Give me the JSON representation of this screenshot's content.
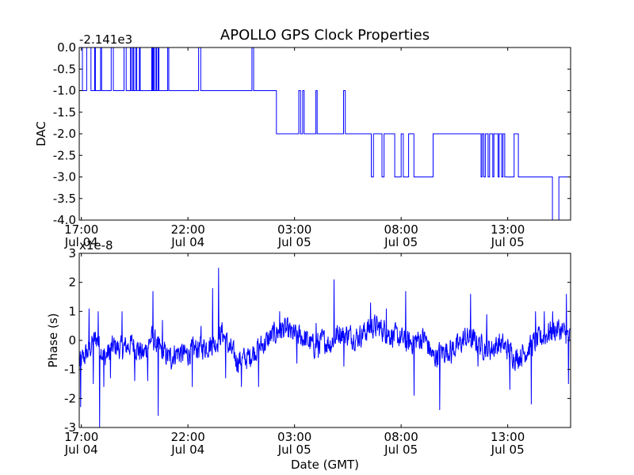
{
  "title": "APOLLO GPS Clock Properties",
  "chart_data": [
    {
      "type": "line",
      "ylabel": "DAC",
      "offset_label": "-2.141e3",
      "ylim": [
        -4.0,
        0.0
      ],
      "yticks": [
        0.0,
        -0.5,
        -1.0,
        -1.5,
        -2.0,
        -2.5,
        -3.0,
        -3.5,
        -4.0
      ],
      "ytick_labels": [
        "0.0",
        "-0.5",
        "-1.0",
        "-1.5",
        "-2.0",
        "-2.5",
        "-3.0",
        "-3.5",
        "-4.0"
      ],
      "xlim": [
        16.9,
        39.95
      ],
      "xticks": [
        17,
        22,
        27,
        32,
        37
      ],
      "xtick_labels": [
        [
          "17:00",
          "Jul 04"
        ],
        [
          "22:00",
          "Jul 04"
        ],
        [
          "03:00",
          "Jul 05"
        ],
        [
          "08:00",
          "Jul 05"
        ],
        [
          "13:00",
          "Jul 05"
        ]
      ],
      "series": [
        {
          "color": "#0000ff",
          "levels": [
            [
              16.9,
              0
            ],
            [
              17.05,
              -1
            ],
            [
              17.25,
              0
            ],
            [
              17.45,
              -1
            ],
            [
              17.62,
              0
            ],
            [
              17.66,
              -1
            ],
            [
              17.9,
              0
            ],
            [
              17.95,
              -1
            ],
            [
              18.4,
              0
            ],
            [
              18.5,
              -1
            ],
            [
              19.0,
              0
            ],
            [
              19.1,
              -1
            ],
            [
              19.3,
              0
            ],
            [
              19.35,
              -1
            ],
            [
              19.42,
              0
            ],
            [
              19.46,
              -1
            ],
            [
              19.55,
              0
            ],
            [
              19.6,
              -1
            ],
            [
              19.72,
              0
            ],
            [
              19.76,
              -1
            ],
            [
              20.3,
              0
            ],
            [
              20.34,
              -1
            ],
            [
              20.38,
              0
            ],
            [
              20.42,
              -1
            ],
            [
              20.5,
              0
            ],
            [
              20.53,
              -1
            ],
            [
              20.6,
              0
            ],
            [
              20.64,
              -1
            ],
            [
              21.05,
              0
            ],
            [
              21.1,
              -1
            ],
            [
              22.5,
              0
            ],
            [
              22.6,
              -1
            ],
            [
              25.0,
              0
            ],
            [
              25.08,
              -1
            ],
            [
              26.15,
              -2
            ],
            [
              27.2,
              -1
            ],
            [
              27.28,
              -2
            ],
            [
              27.38,
              -1
            ],
            [
              27.45,
              -2
            ],
            [
              28.0,
              -1
            ],
            [
              28.06,
              -2
            ],
            [
              29.3,
              -1
            ],
            [
              29.38,
              -2
            ],
            [
              30.6,
              -3
            ],
            [
              30.7,
              -2
            ],
            [
              31.1,
              -3
            ],
            [
              31.2,
              -2
            ],
            [
              31.7,
              -3
            ],
            [
              32.0,
              -2
            ],
            [
              32.1,
              -3
            ],
            [
              32.35,
              -2
            ],
            [
              32.6,
              -3
            ],
            [
              33.5,
              -2
            ],
            [
              35.75,
              -3
            ],
            [
              35.8,
              -2
            ],
            [
              35.88,
              -3
            ],
            [
              35.95,
              -2
            ],
            [
              36.08,
              -3
            ],
            [
              36.15,
              -2
            ],
            [
              36.3,
              -3
            ],
            [
              36.35,
              -2
            ],
            [
              36.55,
              -3
            ],
            [
              36.6,
              -2
            ],
            [
              36.72,
              -3
            ],
            [
              36.78,
              -2
            ],
            [
              36.86,
              -3
            ],
            [
              37.3,
              -2
            ],
            [
              37.5,
              -3
            ],
            [
              39.1,
              -4
            ],
            [
              39.4,
              -3
            ],
            [
              39.95,
              -3
            ]
          ]
        }
      ]
    },
    {
      "type": "line",
      "ylabel": "Phase (s)",
      "xlabel": "Date (GMT)",
      "offset_label": "x1e-8",
      "ylim": [
        -3,
        3
      ],
      "yticks": [
        3,
        2,
        1,
        0,
        -1,
        -2,
        -3
      ],
      "ytick_labels": [
        "3",
        "2",
        "1",
        "0",
        "-1",
        "-2",
        "-3"
      ],
      "xlim": [
        16.9,
        39.95
      ],
      "xticks": [
        17,
        22,
        27,
        32,
        37
      ],
      "xtick_labels": [
        [
          "17:00",
          "Jul 04"
        ],
        [
          "22:00",
          "Jul 04"
        ],
        [
          "03:00",
          "Jul 05"
        ],
        [
          "08:00",
          "Jul 05"
        ],
        [
          "13:00",
          "Jul 05"
        ]
      ],
      "series": [
        {
          "color": "#0000ff",
          "trend": [
            [
              16.9,
              -0.8
            ],
            [
              17.3,
              -0.4
            ],
            [
              17.7,
              0.1
            ],
            [
              18.1,
              -0.6
            ],
            [
              18.5,
              -0.2
            ],
            [
              18.9,
              -0.3
            ],
            [
              19.4,
              -0.1
            ],
            [
              19.9,
              -0.5
            ],
            [
              20.3,
              0.1
            ],
            [
              20.7,
              -0.3
            ],
            [
              21.1,
              -0.6
            ],
            [
              21.5,
              -0.4
            ],
            [
              21.9,
              -0.5
            ],
            [
              22.3,
              -0.3
            ],
            [
              22.8,
              -0.2
            ],
            [
              23.3,
              -0.1
            ],
            [
              23.6,
              0.3
            ],
            [
              23.9,
              -0.2
            ],
            [
              24.3,
              -0.7
            ],
            [
              24.8,
              -0.6
            ],
            [
              25.2,
              -0.3
            ],
            [
              25.6,
              -0.1
            ],
            [
              26.0,
              0.2
            ],
            [
              26.5,
              0.4
            ],
            [
              26.9,
              0.2
            ],
            [
              27.4,
              0.1
            ],
            [
              27.9,
              -0.2
            ],
            [
              28.3,
              0.0
            ],
            [
              28.7,
              -0.1
            ],
            [
              29.1,
              0.3
            ],
            [
              29.5,
              0.2
            ],
            [
              29.9,
              0.1
            ],
            [
              30.3,
              0.3
            ],
            [
              30.7,
              0.5
            ],
            [
              31.1,
              0.4
            ],
            [
              31.5,
              0.2
            ],
            [
              31.9,
              0.1
            ],
            [
              32.3,
              -0.1
            ],
            [
              32.7,
              0.0
            ],
            [
              33.1,
              0.1
            ],
            [
              33.5,
              -0.6
            ],
            [
              33.9,
              -0.4
            ],
            [
              34.3,
              -0.3
            ],
            [
              34.7,
              -0.2
            ],
            [
              35.0,
              0.1
            ],
            [
              35.4,
              0.0
            ],
            [
              35.8,
              -0.2
            ],
            [
              36.2,
              -0.3
            ],
            [
              36.6,
              -0.1
            ],
            [
              37.0,
              -0.3
            ],
            [
              37.4,
              -0.6
            ],
            [
              37.8,
              -0.4
            ],
            [
              38.2,
              -0.1
            ],
            [
              38.6,
              0.1
            ],
            [
              39.0,
              0.3
            ],
            [
              39.4,
              0.4
            ],
            [
              39.7,
              0.2
            ],
            [
              39.95,
              0.1
            ]
          ],
          "noise_amplitude": 0.45,
          "spikes": [
            [
              16.95,
              -2.3
            ],
            [
              17.35,
              1.1
            ],
            [
              17.55,
              -1.5
            ],
            [
              17.78,
              1.0
            ],
            [
              17.85,
              -3.0
            ],
            [
              18.05,
              -1.6
            ],
            [
              18.35,
              -1.3
            ],
            [
              18.9,
              1.0
            ],
            [
              19.5,
              -1.4
            ],
            [
              20.1,
              -1.4
            ],
            [
              20.35,
              1.7
            ],
            [
              20.6,
              -2.6
            ],
            [
              20.8,
              0.7
            ],
            [
              21.2,
              -1.0
            ],
            [
              22.2,
              -1.6
            ],
            [
              22.6,
              0.5
            ],
            [
              23.15,
              1.8
            ],
            [
              23.42,
              2.5
            ],
            [
              23.75,
              -1.3
            ],
            [
              24.5,
              -1.6
            ],
            [
              25.3,
              -1.6
            ],
            [
              26.3,
              1.0
            ],
            [
              27.1,
              -0.8
            ],
            [
              28.0,
              0.6
            ],
            [
              28.1,
              -0.6
            ],
            [
              28.85,
              2.1
            ],
            [
              29.3,
              -0.9
            ],
            [
              30.55,
              1.3
            ],
            [
              31.3,
              1.1
            ],
            [
              32.2,
              1.7
            ],
            [
              32.6,
              -1.9
            ],
            [
              33.8,
              -2.4
            ],
            [
              34.35,
              -0.8
            ],
            [
              35.25,
              1.6
            ],
            [
              35.6,
              -0.9
            ],
            [
              36.0,
              0.9
            ],
            [
              37.1,
              -1.7
            ],
            [
              37.4,
              -0.5
            ],
            [
              38.1,
              -2.2
            ],
            [
              38.3,
              1.0
            ],
            [
              38.7,
              1.0
            ],
            [
              39.1,
              1.0
            ],
            [
              39.75,
              1.6
            ],
            [
              39.85,
              -1.5
            ]
          ]
        }
      ]
    }
  ]
}
